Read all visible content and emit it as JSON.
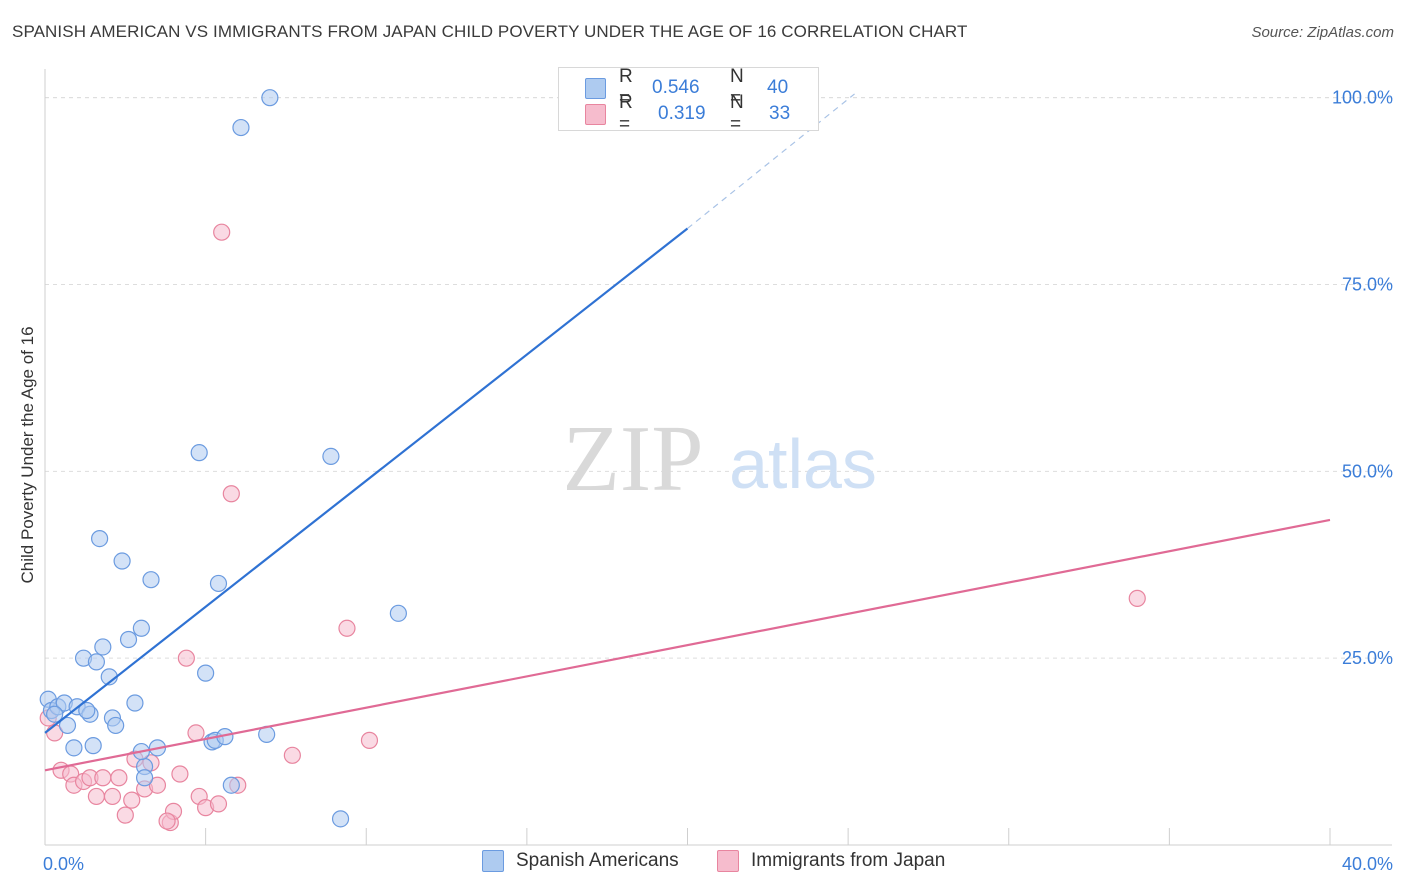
{
  "title": "SPANISH AMERICAN VS IMMIGRANTS FROM JAPAN CHILD POVERTY UNDER THE AGE OF 16 CORRELATION CHART",
  "source": "Source: ZipAtlas.com",
  "watermark": {
    "zip": "ZIP",
    "atlas": "atlas"
  },
  "legend": {
    "rows": [
      {
        "r_label": "R =",
        "r_value": "0.546",
        "n_label": "N =",
        "n_value": "40"
      },
      {
        "r_label": "R =",
        "r_value": "0.319",
        "n_label": "N =",
        "n_value": "33"
      }
    ]
  },
  "bottom_legend": {
    "series1": "Spanish Americans",
    "series2": "Immigrants from Japan"
  },
  "colors": {
    "blue_fill": "#aecbf0",
    "blue_stroke": "#6b9be0",
    "blue_line": "#2f72d3",
    "pink_fill": "#f6bccd",
    "pink_stroke": "#e8859f",
    "pink_line": "#e06a95",
    "axis_text": "#3b7dd8",
    "grid": "#dddddd"
  },
  "chart_data": {
    "type": "scatter",
    "title": "SPANISH AMERICAN VS IMMIGRANTS FROM JAPAN CHILD POVERTY UNDER THE AGE OF 16 CORRELATION CHART",
    "xlabel": "",
    "ylabel": "Child Poverty Under the Age of 16",
    "xlim": [
      0,
      40
    ],
    "ylim": [
      0,
      102.5
    ],
    "x_tick_labels": [
      "0.0%",
      "40.0%"
    ],
    "y_ticks": [
      25,
      50,
      75,
      100
    ],
    "y_tick_labels": [
      "25.0%",
      "50.0%",
      "75.0%",
      "100.0%"
    ],
    "grid": true,
    "series": [
      {
        "name": "Spanish Americans",
        "R": 0.546,
        "N": 40,
        "points": [
          [
            0.1,
            19.5
          ],
          [
            0.2,
            18.0
          ],
          [
            0.4,
            18.5
          ],
          [
            0.6,
            19.0
          ],
          [
            0.7,
            16.0
          ],
          [
            0.9,
            13.0
          ],
          [
            1.0,
            18.5
          ],
          [
            1.2,
            25.0
          ],
          [
            1.4,
            17.5
          ],
          [
            1.5,
            13.3
          ],
          [
            1.6,
            24.5
          ],
          [
            1.7,
            41.0
          ],
          [
            1.8,
            26.5
          ],
          [
            2.0,
            22.5
          ],
          [
            2.1,
            17.0
          ],
          [
            2.2,
            16.0
          ],
          [
            2.4,
            38.0
          ],
          [
            2.6,
            27.5
          ],
          [
            2.8,
            19.0
          ],
          [
            3.0,
            29.0
          ],
          [
            3.1,
            10.5
          ],
          [
            3.1,
            9.0
          ],
          [
            3.3,
            35.5
          ],
          [
            3.5,
            13.0
          ],
          [
            4.8,
            52.5
          ],
          [
            5.0,
            23.0
          ],
          [
            5.2,
            13.8
          ],
          [
            5.3,
            14.0
          ],
          [
            5.4,
            35.0
          ],
          [
            5.6,
            14.5
          ],
          [
            5.8,
            8.0
          ],
          [
            6.1,
            96.0
          ],
          [
            6.9,
            14.8
          ],
          [
            7.0,
            100.0
          ],
          [
            8.9,
            52.0
          ],
          [
            9.2,
            3.5
          ],
          [
            11.0,
            31.0
          ],
          [
            0.3,
            17.5
          ],
          [
            1.3,
            18.0
          ],
          [
            3.0,
            12.5
          ]
        ]
      },
      {
        "name": "Immigrants from Japan",
        "R": 0.319,
        "N": 33,
        "points": [
          [
            0.1,
            17.0
          ],
          [
            0.3,
            15.0
          ],
          [
            0.5,
            10.0
          ],
          [
            0.8,
            9.5
          ],
          [
            0.9,
            8.0
          ],
          [
            1.2,
            8.5
          ],
          [
            1.4,
            9.0
          ],
          [
            1.6,
            6.5
          ],
          [
            1.8,
            9.0
          ],
          [
            2.1,
            6.5
          ],
          [
            2.3,
            9.0
          ],
          [
            2.5,
            4.0
          ],
          [
            2.7,
            6.0
          ],
          [
            2.8,
            11.5
          ],
          [
            3.1,
            7.5
          ],
          [
            3.3,
            11.0
          ],
          [
            3.5,
            8.0
          ],
          [
            3.9,
            3.0
          ],
          [
            4.0,
            4.5
          ],
          [
            4.2,
            9.5
          ],
          [
            4.4,
            25.0
          ],
          [
            4.7,
            15.0
          ],
          [
            4.8,
            6.5
          ],
          [
            5.0,
            5.0
          ],
          [
            5.4,
            5.5
          ],
          [
            5.5,
            82.0
          ],
          [
            5.8,
            47.0
          ],
          [
            6.0,
            8.0
          ],
          [
            7.7,
            12.0
          ],
          [
            9.4,
            29.0
          ],
          [
            10.1,
            14.0
          ],
          [
            34.0,
            33.0
          ],
          [
            3.8,
            3.2
          ]
        ]
      }
    ],
    "trend_lines": [
      {
        "series": "Spanish Americans",
        "from": [
          0,
          15.0
        ],
        "to": [
          20,
          82.5
        ],
        "dashed_to": [
          25.2,
          100.5
        ]
      },
      {
        "series": "Immigrants from Japan",
        "from": [
          0,
          10.0
        ],
        "to": [
          40,
          43.5
        ]
      }
    ]
  }
}
